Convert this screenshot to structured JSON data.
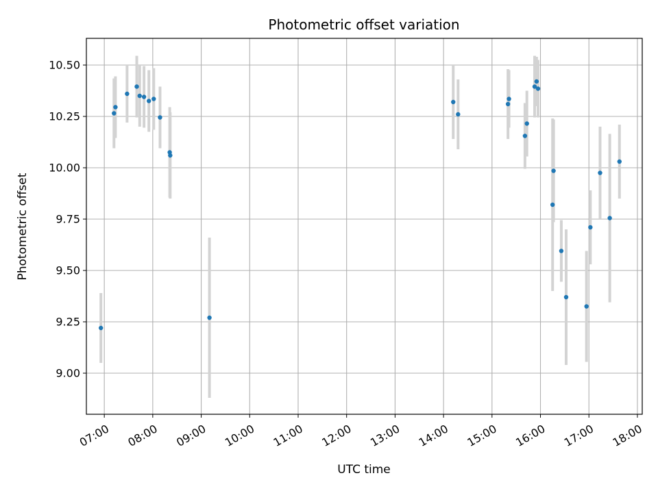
{
  "chart_data": {
    "type": "scatter",
    "title": "Photometric offset variation",
    "xlabel": "UTC time",
    "ylabel": "Photometric offset",
    "x_unit": "hours UTC",
    "xlim": [
      6.63,
      18.1
    ],
    "ylim": [
      8.8,
      10.63
    ],
    "x_ticks": [
      {
        "value": 7,
        "label": "07:00"
      },
      {
        "value": 8,
        "label": "08:00"
      },
      {
        "value": 9,
        "label": "09:00"
      },
      {
        "value": 10,
        "label": "10:00"
      },
      {
        "value": 11,
        "label": "11:00"
      },
      {
        "value": 12,
        "label": "12:00"
      },
      {
        "value": 13,
        "label": "13:00"
      },
      {
        "value": 14,
        "label": "14:00"
      },
      {
        "value": 15,
        "label": "15:00"
      },
      {
        "value": 16,
        "label": "16:00"
      },
      {
        "value": 17,
        "label": "17:00"
      },
      {
        "value": 18,
        "label": "18:00"
      }
    ],
    "y_ticks": [
      {
        "value": 9.0,
        "label": "9.00"
      },
      {
        "value": 9.25,
        "label": "9.25"
      },
      {
        "value": 9.5,
        "label": "9.50"
      },
      {
        "value": 9.75,
        "label": "9.75"
      },
      {
        "value": 10.0,
        "label": "10.00"
      },
      {
        "value": 10.25,
        "label": "10.25"
      },
      {
        "value": 10.5,
        "label": "10.50"
      }
    ],
    "grid": true,
    "marker_color": "#1f77b4",
    "errorbar_color": "#d3d3d3",
    "points": [
      {
        "x": 6.93,
        "y": 9.22,
        "err": 0.17
      },
      {
        "x": 7.2,
        "y": 10.265,
        "err": 0.17
      },
      {
        "x": 7.23,
        "y": 10.295,
        "err": 0.15
      },
      {
        "x": 7.47,
        "y": 10.36,
        "err": 0.14
      },
      {
        "x": 7.67,
        "y": 10.395,
        "err": 0.15
      },
      {
        "x": 7.73,
        "y": 10.35,
        "err": 0.15
      },
      {
        "x": 7.82,
        "y": 10.345,
        "err": 0.15
      },
      {
        "x": 7.92,
        "y": 10.325,
        "err": 0.15
      },
      {
        "x": 8.02,
        "y": 10.335,
        "err": 0.15
      },
      {
        "x": 8.15,
        "y": 10.245,
        "err": 0.15
      },
      {
        "x": 8.35,
        "y": 10.075,
        "err": 0.22
      },
      {
        "x": 8.36,
        "y": 10.06,
        "err": 0.21
      },
      {
        "x": 9.17,
        "y": 9.27,
        "err": 0.39
      },
      {
        "x": 14.2,
        "y": 10.32,
        "err": 0.18
      },
      {
        "x": 14.3,
        "y": 10.26,
        "err": 0.17
      },
      {
        "x": 15.33,
        "y": 10.31,
        "err": 0.17
      },
      {
        "x": 15.35,
        "y": 10.335,
        "err": 0.14
      },
      {
        "x": 15.68,
        "y": 10.155,
        "err": 0.16
      },
      {
        "x": 15.72,
        "y": 10.215,
        "err": 0.16
      },
      {
        "x": 15.88,
        "y": 10.395,
        "err": 0.15
      },
      {
        "x": 15.92,
        "y": 10.42,
        "err": 0.12
      },
      {
        "x": 15.95,
        "y": 10.385,
        "err": 0.14
      },
      {
        "x": 16.25,
        "y": 9.82,
        "err": 0.42
      },
      {
        "x": 16.27,
        "y": 9.985,
        "err": 0.25
      },
      {
        "x": 16.43,
        "y": 9.595,
        "err": 0.15
      },
      {
        "x": 16.53,
        "y": 9.37,
        "err": 0.33
      },
      {
        "x": 16.95,
        "y": 9.325,
        "err": 0.27
      },
      {
        "x": 17.03,
        "y": 9.71,
        "err": 0.18
      },
      {
        "x": 17.23,
        "y": 9.975,
        "err": 0.225
      },
      {
        "x": 17.43,
        "y": 9.755,
        "err": 0.41
      },
      {
        "x": 17.63,
        "y": 10.03,
        "err": 0.18
      }
    ]
  }
}
